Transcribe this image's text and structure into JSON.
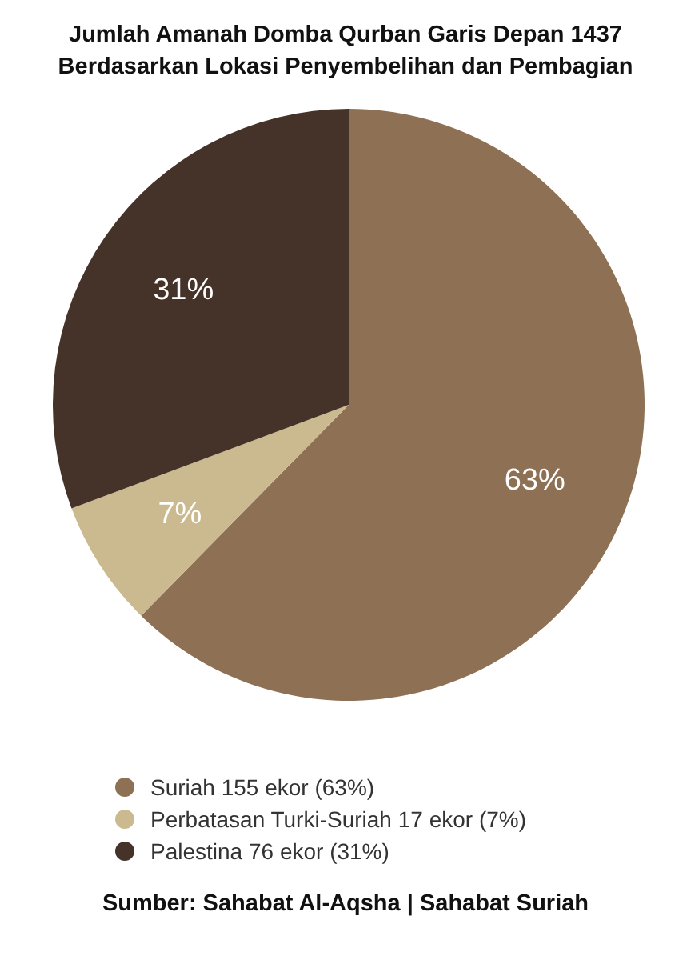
{
  "chart_data": {
    "type": "pie",
    "title": "Jumlah Amanah Domba Qurban Garis Depan 1437\nBerdasarkan Lokasi Penyembelihan dan Pembagian",
    "categories": [
      "Suriah 155 ekor (63%)",
      "Perbatasan Turki-Suriah 17 ekor (7%)",
      "Palestina 76 ekor (31%)"
    ],
    "values": [
      63,
      7,
      31
    ],
    "value_labels": [
      "63%",
      "7%",
      "31%"
    ],
    "colors": [
      "#8e7155",
      "#cbb98f",
      "#45332a"
    ],
    "legend": "bottom",
    "annotations": [
      "Sumber: Sahabat Al-Aqsha | Sahabat Suriah"
    ]
  }
}
